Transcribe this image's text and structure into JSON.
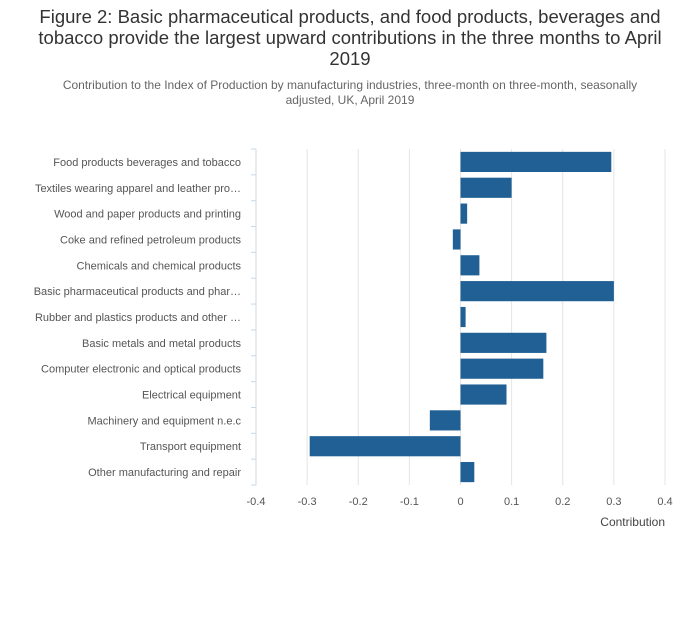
{
  "page": {
    "title": "Figure 2: Basic pharmaceutical products, and food products, beverages and tobacco provide the largest upward contributions in the three months to April 2019",
    "subtitle": "Contribution to the Index of Production by manufacturing industries, three-month on three-month, seasonally adjusted, UK, April 2019"
  },
  "chart_data": {
    "type": "bar",
    "orientation": "horizontal",
    "categories": [
      "Food products beverages and tobacco",
      "Textiles wearing apparel and leather pro…",
      "Wood and paper products and printing",
      "Coke and refined petroleum products",
      "Chemicals and chemical products",
      "Basic pharmaceutical products and phar…",
      "Rubber and plastics products and other …",
      "Basic metals and metal products",
      "Computer electronic and optical products",
      "Electrical equipment",
      "Machinery and equipment n.e.c",
      "Transport equipment",
      "Other manufacturing and repair"
    ],
    "values": [
      0.295,
      0.1,
      0.013,
      -0.015,
      0.037,
      0.3,
      0.01,
      0.168,
      0.162,
      0.09,
      -0.06,
      -0.295,
      0.027
    ],
    "xlabel": "Contribution",
    "ylabel": "",
    "xlim": [
      -0.4,
      0.4
    ],
    "xticks": [
      -0.4,
      -0.3,
      -0.2,
      -0.1,
      0,
      0.1,
      0.2,
      0.3,
      0.4
    ],
    "xtick_labels": [
      "-0.4",
      "-0.3",
      "-0.2",
      "-0.1",
      "0",
      "0.1",
      "0.2",
      "0.3",
      "0.4"
    ],
    "grid": true,
    "bar_color": "#206095",
    "grid_color": "#e4e4e4",
    "axis_color": "#c8d8e6"
  }
}
